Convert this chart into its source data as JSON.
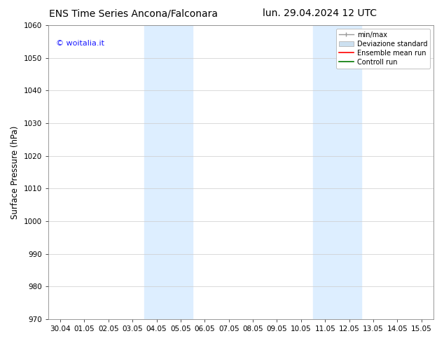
{
  "title_left": "ENS Time Series Ancona/Falconara",
  "title_right": "lun. 29.04.2024 12 UTC",
  "ylabel": "Surface Pressure (hPa)",
  "xlabel": "",
  "ylim": [
    970,
    1060
  ],
  "yticks": [
    970,
    980,
    990,
    1000,
    1010,
    1020,
    1030,
    1040,
    1050,
    1060
  ],
  "xtick_labels": [
    "30.04",
    "01.05",
    "02.05",
    "03.05",
    "04.05",
    "05.05",
    "06.05",
    "07.05",
    "08.05",
    "09.05",
    "10.05",
    "11.05",
    "12.05",
    "13.05",
    "14.05",
    "15.05"
  ],
  "num_ticks": 16,
  "shaded_pairs": [
    {
      "xmin": 4,
      "xmax": 6
    },
    {
      "xmin": 11,
      "xmax": 13
    }
  ],
  "shaded_color": "#ddeeff",
  "watermark_text": "© woitalia.it",
  "watermark_color": "#1a1aff",
  "legend_items": [
    {
      "label": "min/max",
      "type": "minmax",
      "color": "#999999"
    },
    {
      "label": "Deviazione standard",
      "type": "patch",
      "color": "#cce0f0"
    },
    {
      "label": "Ensemble mean run",
      "type": "line",
      "color": "#ff0000"
    },
    {
      "label": "Controll run",
      "type": "line",
      "color": "#007700"
    }
  ],
  "background_color": "#ffffff",
  "grid_color": "#cccccc",
  "title_fontsize": 10,
  "tick_fontsize": 7.5,
  "ylabel_fontsize": 8.5,
  "watermark_fontsize": 8
}
